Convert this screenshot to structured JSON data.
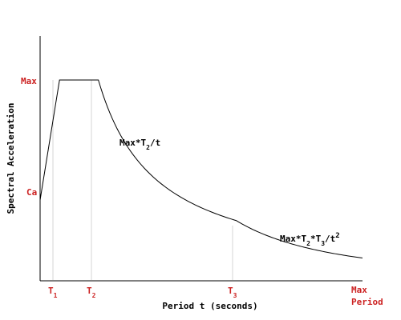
{
  "chart_data": {
    "type": "line",
    "title": "",
    "xlabel": "Period t (seconds)",
    "ylabel": "Spectral Acceleration",
    "x_tick_labels": [
      {
        "key": "t1",
        "base": "T",
        "sub": "1",
        "x": 1.0
      },
      {
        "key": "t2",
        "base": "T",
        "sub": "2",
        "x": 3.0
      },
      {
        "key": "t3",
        "base": "T",
        "sub": "3",
        "x": 10.1
      },
      {
        "key": "tmax",
        "line1": "Max",
        "line2": "Period",
        "x": 16.6
      }
    ],
    "y_tick_labels": [
      {
        "key": "max",
        "text": "Max",
        "y": 1.0
      },
      {
        "key": "ca",
        "text": "Ca",
        "y": 0.4
      }
    ],
    "annotations": {
      "mid": {
        "a": "Max*T",
        "sub": "2",
        "b": "/t"
      },
      "tail": {
        "a": "Max*T",
        "sub1": "2",
        "b": "*T",
        "sub2": "3",
        "c": "/t",
        "sup": "2"
      }
    },
    "xlim": [
      0,
      16.6
    ],
    "ylim": [
      0,
      1.0
    ],
    "grid": false,
    "colors": {
      "curve": "#000000",
      "axis": "#000000",
      "guide": "#d4d4d4",
      "tick_label": "#cc2222",
      "axis_label": "#000000"
    }
  }
}
